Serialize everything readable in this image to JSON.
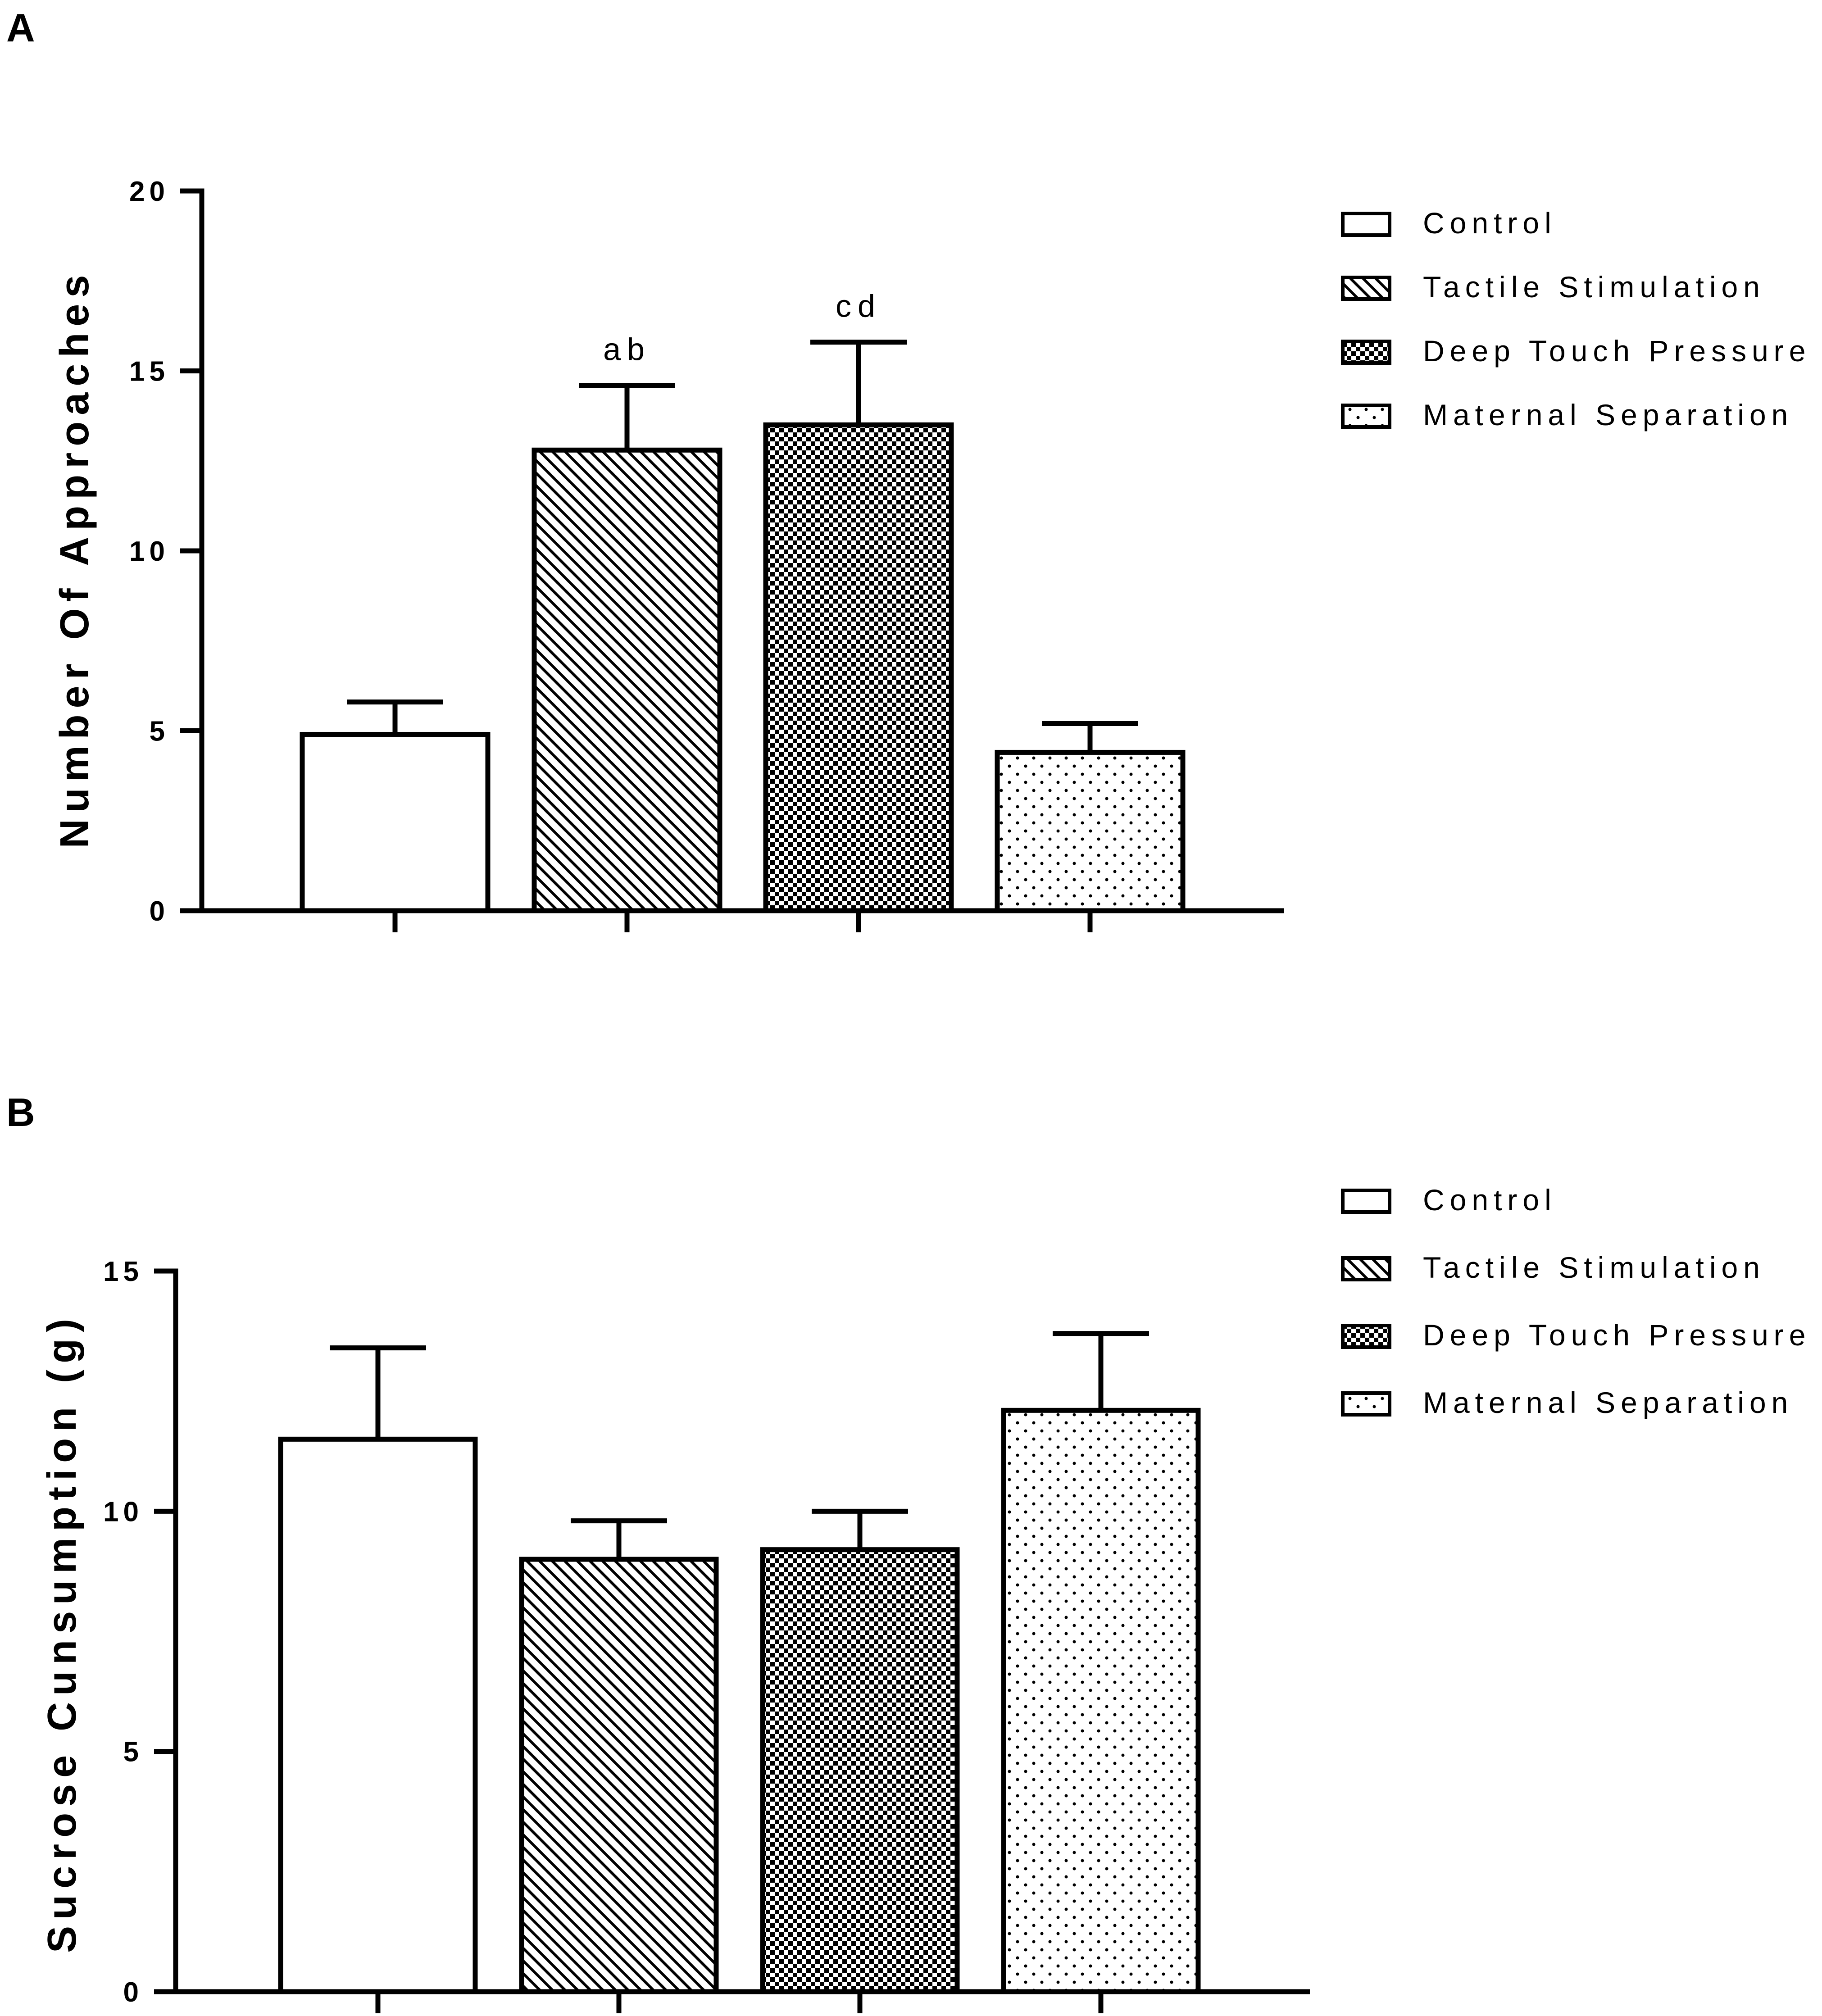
{
  "chart_data": [
    {
      "type": "bar",
      "panel_label": "A",
      "title": "",
      "xlabel": "",
      "ylabel": "Number Of Approaches",
      "ylim": [
        0,
        20
      ],
      "yticks": [
        0,
        5,
        10,
        15,
        20
      ],
      "ytick_labels": [
        "0",
        "5",
        "10",
        "15",
        "20"
      ],
      "categories": [
        "Control",
        "Tactile Stimulation",
        "Deep Touch Pressure",
        "Maternal Separation"
      ],
      "values": [
        4.9,
        12.8,
        13.5,
        4.4
      ],
      "errors": [
        0.9,
        1.8,
        2.3,
        0.8
      ],
      "annotations": [
        "",
        "ab",
        "cd",
        ""
      ],
      "legend": {
        "position": "right",
        "entries": [
          "Control",
          "Tactile Stimulation",
          "Deep Touch Pressure",
          "Maternal Separation"
        ]
      },
      "grid": false
    },
    {
      "type": "bar",
      "panel_label": "B",
      "title": "",
      "xlabel": "",
      "ylabel": "Sucrose Cunsumption (g)",
      "ylim": [
        0,
        15
      ],
      "yticks": [
        0,
        5,
        10,
        15
      ],
      "ytick_labels": [
        "0",
        "5",
        "10",
        "15"
      ],
      "categories": [
        "Control",
        "Tactile Stimulation",
        "Deep Touch Pressure",
        "Maternal Separation"
      ],
      "values": [
        11.5,
        9.0,
        9.2,
        12.1
      ],
      "errors": [
        1.9,
        0.8,
        0.8,
        1.6
      ],
      "annotations": [
        "",
        "",
        "",
        ""
      ],
      "legend": {
        "position": "top-right",
        "entries": [
          "Control",
          "Tactile Stimulation",
          "Deep Touch Pressure",
          "Maternal Separation"
        ]
      },
      "grid": false
    }
  ],
  "colors": {
    "stroke": "#000000",
    "background": "#ffffff"
  }
}
